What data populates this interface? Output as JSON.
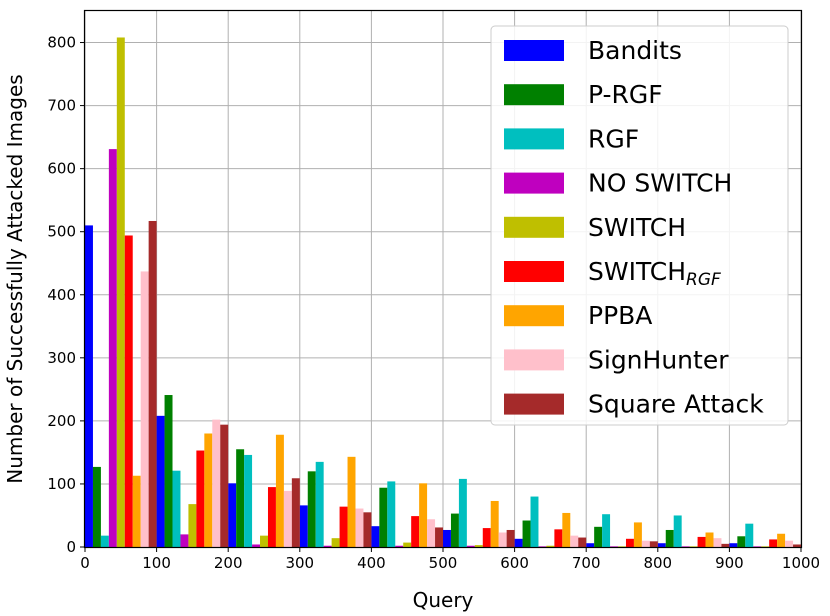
{
  "chart_data": {
    "type": "bar",
    "xlabel": "Query",
    "ylabel": "Number of Successfully Attacked Images",
    "xlim": [
      0,
      1000
    ],
    "ylim": [
      0,
      850
    ],
    "grid": true,
    "legend_position": "top-right",
    "x_ticks": [
      "0",
      "100",
      "200",
      "300",
      "400",
      "500",
      "600",
      "700",
      "800",
      "900",
      "1000"
    ],
    "y_ticks": [
      "0",
      "100",
      "200",
      "300",
      "400",
      "500",
      "600",
      "700",
      "800"
    ],
    "bin_width": 100,
    "categories": [
      0,
      100,
      200,
      300,
      400,
      500,
      600,
      700,
      800,
      900
    ],
    "series": [
      {
        "name": "Bandits",
        "color": "#0000ff",
        "values": [
          510,
          208,
          101,
          66,
          33,
          27,
          13,
          6,
          6,
          6
        ]
      },
      {
        "name": "P-RGF",
        "color": "#008000",
        "values": [
          127,
          241,
          155,
          120,
          94,
          53,
          42,
          32,
          27,
          17
        ]
      },
      {
        "name": "RGF",
        "color": "#00bfbf",
        "values": [
          18,
          121,
          146,
          135,
          104,
          108,
          80,
          52,
          50,
          37
        ]
      },
      {
        "name": "NO SWITCH",
        "color": "#bf00bf",
        "values": [
          631,
          20,
          4,
          2,
          2,
          2,
          1,
          1,
          1,
          1
        ]
      },
      {
        "name": "SWITCH",
        "color": "#bfbf00",
        "values": [
          808,
          68,
          18,
          14,
          7,
          3,
          2,
          1,
          1,
          1
        ]
      },
      {
        "name": "SWITCH",
        "name_sub": "RGF",
        "color": "#ff0000",
        "values": [
          494,
          153,
          95,
          64,
          49,
          30,
          28,
          13,
          16,
          12
        ]
      },
      {
        "name": "PPBA",
        "color": "#ffa500",
        "values": [
          113,
          180,
          178,
          143,
          101,
          73,
          54,
          39,
          23,
          21
        ]
      },
      {
        "name": "SignHunter",
        "color": "#ffc0cb",
        "values": [
          437,
          202,
          89,
          61,
          44,
          23,
          18,
          10,
          14,
          10
        ]
      },
      {
        "name": "Square Attack",
        "color": "#a52a2a",
        "values": [
          517,
          194,
          109,
          55,
          31,
          27,
          15,
          9,
          5,
          4
        ]
      }
    ]
  }
}
